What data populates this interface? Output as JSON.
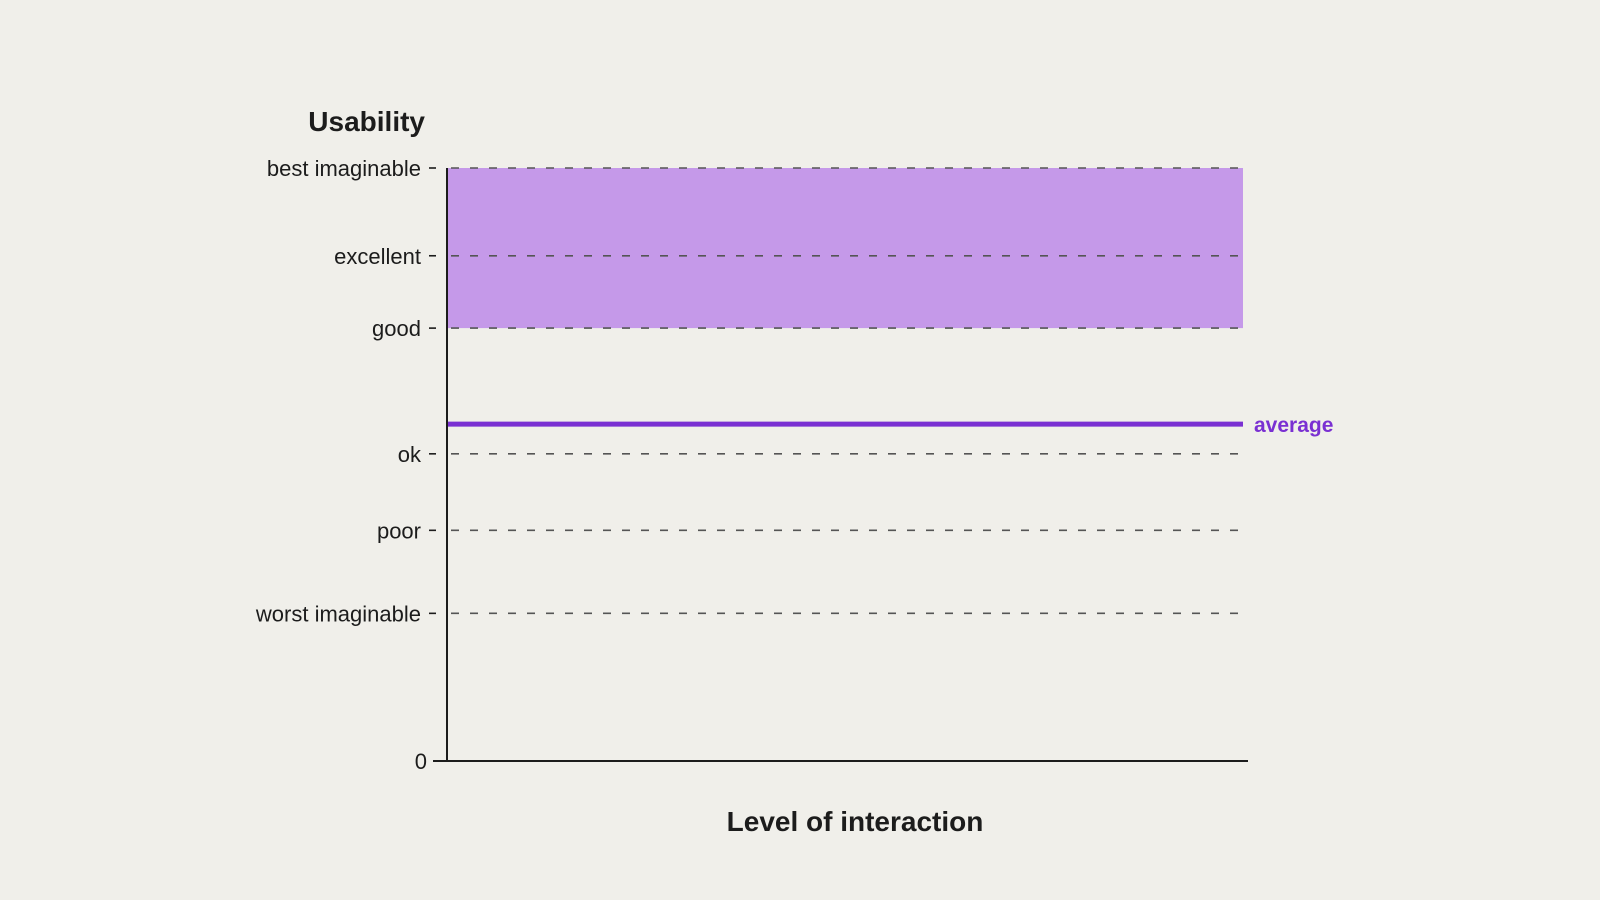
{
  "chart_data": {
    "type": "line",
    "ylabel": "Usability",
    "xlabel": "Level of interaction",
    "ylim": [
      0,
      100
    ],
    "grid": "dashed horizontal lines at each scale level",
    "y_levels": [
      {
        "label": "best imaginable",
        "value": 100
      },
      {
        "label": "excellent",
        "value": 85.2
      },
      {
        "label": "good",
        "value": 73
      },
      {
        "label": "ok",
        "value": 51.8
      },
      {
        "label": "poor",
        "value": 38.9
      },
      {
        "label": "worst imaginable",
        "value": 24.9
      }
    ],
    "zero_label": "0",
    "band": {
      "from": 73,
      "to": 100,
      "color": "#c599e9"
    },
    "reference_line": {
      "label": "average",
      "value": 56.8,
      "color": "#7a30d2"
    },
    "colors": {
      "axis": "#1c1c1c",
      "grid": "#555555",
      "background": "#f0efea"
    }
  }
}
